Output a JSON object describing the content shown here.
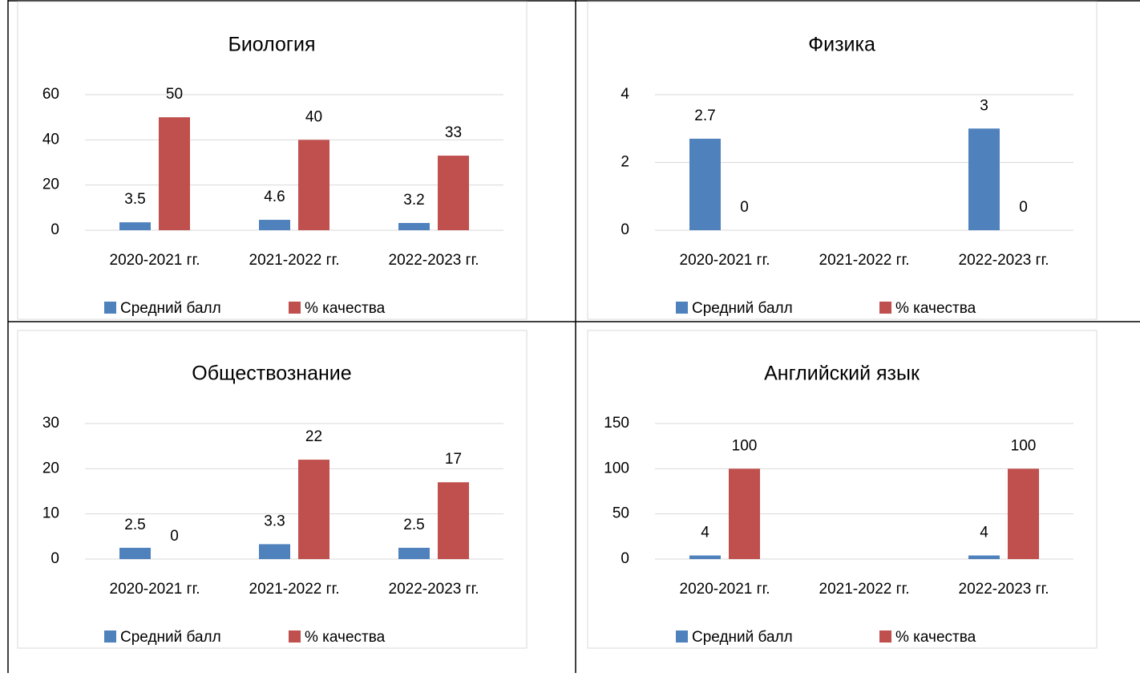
{
  "chart_data": [
    {
      "type": "bar",
      "title": "Биология",
      "categories": [
        "2020-2021 гг.",
        "2021-2022 гг.",
        "2022-2023 гг."
      ],
      "series": [
        {
          "name": "Средний балл",
          "color": "#4f81bd",
          "values": [
            3.5,
            4.6,
            3.2
          ]
        },
        {
          "name": "% качества",
          "color": "#c0504d",
          "values": [
            50,
            40,
            33
          ]
        }
      ],
      "ylim": [
        0,
        60
      ],
      "yticks": [
        0,
        20,
        40,
        60
      ],
      "grid": true,
      "legend": "bottom"
    },
    {
      "type": "bar",
      "title": "Физика",
      "categories": [
        "2020-2021 гг.",
        "2021-2022 гг.",
        "2022-2023 гг."
      ],
      "series": [
        {
          "name": "Средний балл",
          "color": "#4f81bd",
          "values": [
            2.7,
            null,
            3
          ]
        },
        {
          "name": "% качества",
          "color": "#c0504d",
          "values": [
            0,
            null,
            0
          ]
        }
      ],
      "ylim": [
        0,
        4
      ],
      "yticks": [
        0,
        2,
        4
      ],
      "grid": true,
      "legend": "bottom"
    },
    {
      "type": "bar",
      "title": "Обществознание",
      "categories": [
        "2020-2021 гг.",
        "2021-2022 гг.",
        "2022-2023 гг."
      ],
      "series": [
        {
          "name": "Средний балл",
          "color": "#4f81bd",
          "values": [
            2.5,
            3.3,
            2.5
          ]
        },
        {
          "name": "% качества",
          "color": "#c0504d",
          "values": [
            0,
            22,
            17
          ]
        }
      ],
      "ylim": [
        0,
        30
      ],
      "yticks": [
        0,
        10,
        20,
        30
      ],
      "grid": true,
      "legend": "bottom"
    },
    {
      "type": "bar",
      "title": "Английский язык",
      "categories": [
        "2020-2021 гг.",
        "2021-2022 гг.",
        "2022-2023 гг."
      ],
      "series": [
        {
          "name": "Средний балл",
          "color": "#4f81bd",
          "values": [
            4,
            null,
            4
          ]
        },
        {
          "name": "% качества",
          "color": "#c0504d",
          "values": [
            100,
            null,
            100
          ]
        }
      ],
      "ylim": [
        0,
        150
      ],
      "yticks": [
        0,
        50,
        100,
        150
      ],
      "grid": true,
      "legend": "bottom"
    }
  ]
}
